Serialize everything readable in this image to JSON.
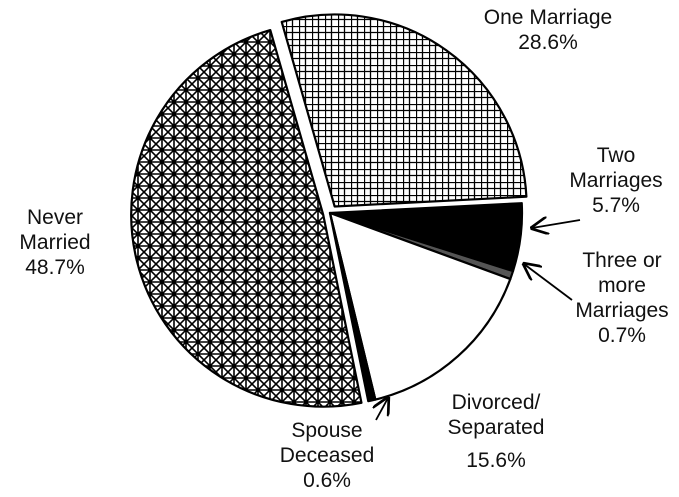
{
  "chart_data": {
    "type": "pie",
    "categories": [
      "One Marriage",
      "Two Marriages",
      "Three or more Marriages",
      "Divorced/ Separated",
      "Spouse Deceased",
      "Never Married"
    ],
    "values": [
      28.6,
      5.7,
      0.7,
      15.6,
      0.6,
      48.7
    ],
    "value_labels": [
      "28.6%",
      "5.7%",
      "0.7%",
      "15.6%",
      "0.6%",
      "48.7%"
    ],
    "colors": [
      "#ffffff",
      "#000000",
      "#555555",
      "#ffffff",
      "#000000",
      "#ffffff"
    ]
  }
}
